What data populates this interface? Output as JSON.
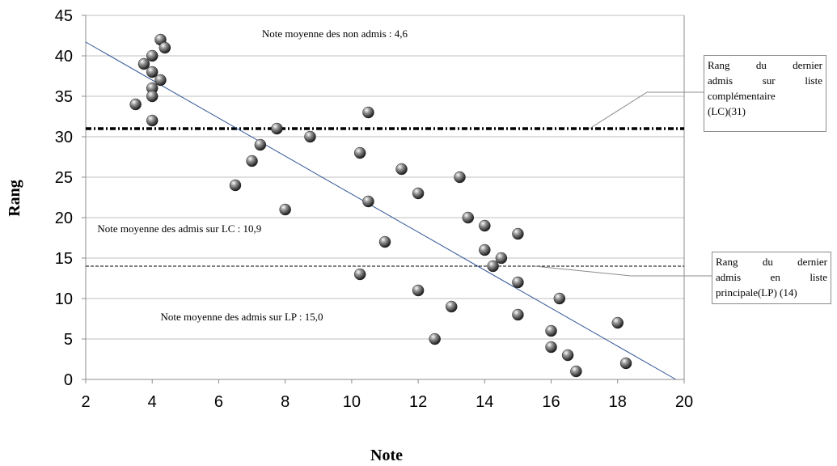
{
  "chart_data": {
    "type": "scatter",
    "title": "",
    "xlabel": "Note",
    "ylabel": "Rang",
    "xlim": [
      2,
      20
    ],
    "ylim": [
      0,
      45
    ],
    "xticks": [
      2,
      4,
      6,
      8,
      10,
      12,
      14,
      16,
      18,
      20
    ],
    "yticks": [
      0,
      5,
      10,
      15,
      20,
      25,
      30,
      35,
      40,
      45
    ],
    "grid": "horizontal",
    "points": [
      {
        "x": 3.5,
        "y": 34
      },
      {
        "x": 3.75,
        "y": 39
      },
      {
        "x": 4.0,
        "y": 40
      },
      {
        "x": 4.0,
        "y": 38
      },
      {
        "x": 4.0,
        "y": 36
      },
      {
        "x": 4.0,
        "y": 35
      },
      {
        "x": 4.0,
        "y": 32
      },
      {
        "x": 4.25,
        "y": 42
      },
      {
        "x": 4.25,
        "y": 37
      },
      {
        "x": 4.38,
        "y": 41
      },
      {
        "x": 6.5,
        "y": 24
      },
      {
        "x": 7.0,
        "y": 27
      },
      {
        "x": 7.25,
        "y": 29
      },
      {
        "x": 7.75,
        "y": 31
      },
      {
        "x": 8.0,
        "y": 21
      },
      {
        "x": 8.75,
        "y": 30
      },
      {
        "x": 10.25,
        "y": 28
      },
      {
        "x": 10.25,
        "y": 13
      },
      {
        "x": 10.5,
        "y": 33
      },
      {
        "x": 10.5,
        "y": 22
      },
      {
        "x": 11.0,
        "y": 17
      },
      {
        "x": 11.5,
        "y": 26
      },
      {
        "x": 12.0,
        "y": 23
      },
      {
        "x": 12.0,
        "y": 11
      },
      {
        "x": 12.5,
        "y": 5
      },
      {
        "x": 13.0,
        "y": 9
      },
      {
        "x": 13.25,
        "y": 25
      },
      {
        "x": 13.5,
        "y": 20
      },
      {
        "x": 14.0,
        "y": 19
      },
      {
        "x": 14.0,
        "y": 16
      },
      {
        "x": 14.25,
        "y": 14
      },
      {
        "x": 14.5,
        "y": 15
      },
      {
        "x": 15.0,
        "y": 18
      },
      {
        "x": 15.0,
        "y": 12
      },
      {
        "x": 15.0,
        "y": 8
      },
      {
        "x": 16.0,
        "y": 6
      },
      {
        "x": 16.0,
        "y": 4
      },
      {
        "x": 16.25,
        "y": 10
      },
      {
        "x": 16.5,
        "y": 3
      },
      {
        "x": 16.75,
        "y": 1
      },
      {
        "x": 18.0,
        "y": 7
      },
      {
        "x": 18.25,
        "y": 2
      }
    ],
    "trendline": {
      "x1": 2,
      "y1": 41.7,
      "x2": 19.75,
      "y2": 0
    },
    "reference_lines": [
      {
        "y": 31,
        "style": "dash-dot-thick"
      },
      {
        "y": 14,
        "style": "dashed-thin"
      }
    ],
    "annotations": [
      {
        "text": "Note moyenne des non admis : 4,6",
        "x": 7.3,
        "y": 42.3
      },
      {
        "text": "Note moyenne des admis sur LC : 10,9",
        "x": 2.35,
        "y": 18.2
      },
      {
        "text": "Note moyenne des admis sur LP : 15,0",
        "x": 4.25,
        "y": 7.3
      }
    ],
    "callouts": [
      {
        "lines": [
          "Rang du dernier",
          "admis sur liste",
          "complémentaire",
          "(LC)(31)"
        ],
        "anchor_x": 17.15,
        "anchor_y": 31
      },
      {
        "lines": [
          "Rang du dernier",
          "admis en liste",
          "principale(LP) (14)"
        ],
        "anchor_x": 15.5,
        "anchor_y": 14
      }
    ],
    "colors": {
      "trendline": "#2f5597",
      "grid": "#bfbfbf",
      "marker": "#5a5a5a"
    }
  }
}
